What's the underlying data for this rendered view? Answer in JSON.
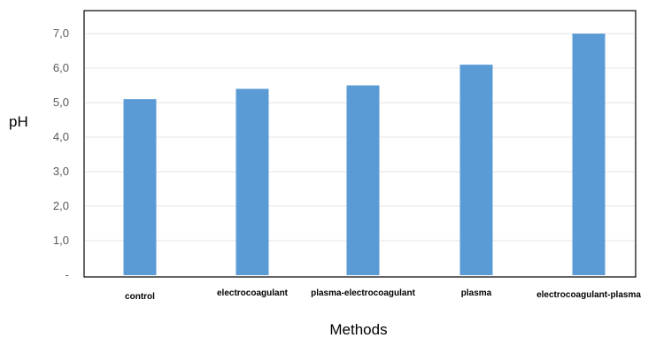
{
  "chart_data": {
    "type": "bar",
    "categories": [
      "control",
      "electrocoagulant",
      "plasma-electrocoagulant",
      "plasma",
      "electrocoagulant-plasma"
    ],
    "values": [
      5.1,
      5.4,
      5.5,
      6.1,
      7.0
    ],
    "xlabel": "Methods",
    "ylabel": "pH",
    "ylim": [
      0,
      7.0
    ],
    "yticks": [
      "-",
      "1,0",
      "2,0",
      "3,0",
      "4,0",
      "5,0",
      "6,0",
      "7,0"
    ],
    "grid": true,
    "bar_color": "#5b9bd5"
  }
}
